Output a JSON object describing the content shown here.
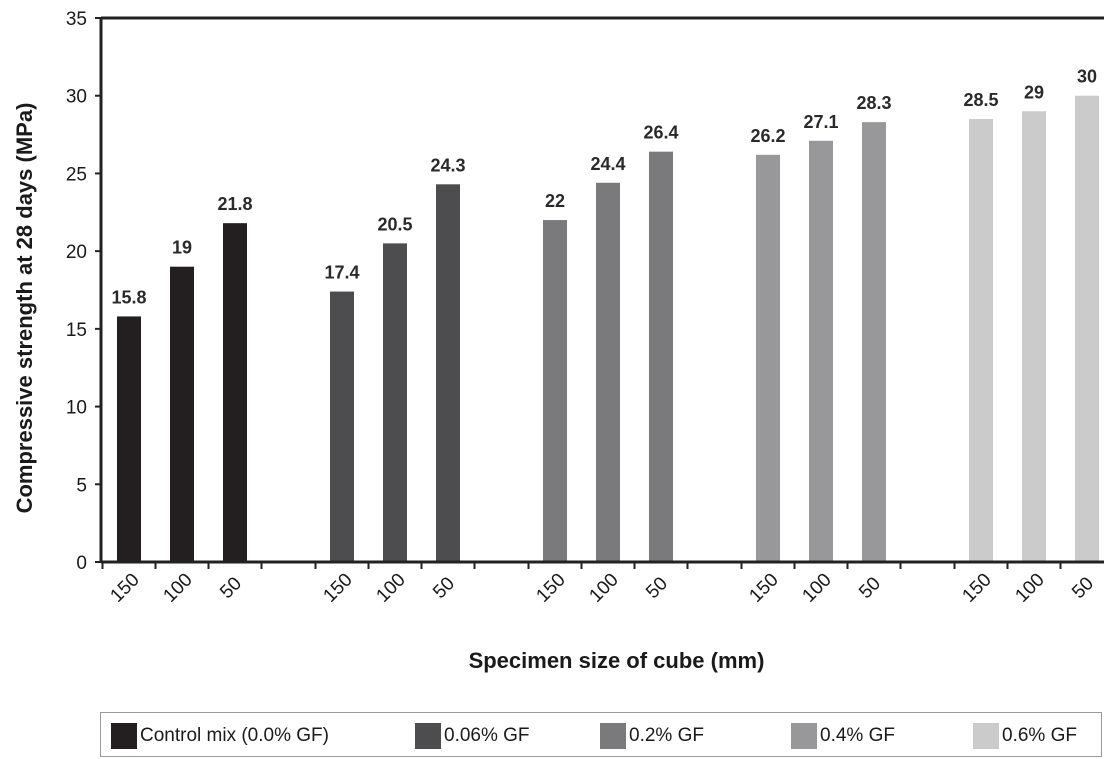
{
  "chart_data": {
    "type": "bar",
    "xlabel": "Specimen size of cube (mm)",
    "ylabel": "Compressive strength at 28 days (MPa)",
    "ylim": [
      0,
      35
    ],
    "yticks": [
      "0",
      "5",
      "10",
      "15",
      "20",
      "25",
      "30",
      "35"
    ],
    "grid": false,
    "legend_position": "bottom",
    "groups": [
      {
        "name": "Control mix (0.0% GF)",
        "color": "#231f20",
        "bars": [
          {
            "size": "150",
            "value": 15.8,
            "label": "15.8"
          },
          {
            "size": "100",
            "value": 19,
            "label": "19"
          },
          {
            "size": "50",
            "value": 21.8,
            "label": "21.8"
          }
        ]
      },
      {
        "name": "0.06% GF",
        "color": "#4d4d4f",
        "bars": [
          {
            "size": "150",
            "value": 17.4,
            "label": "17.4"
          },
          {
            "size": "100",
            "value": 20.5,
            "label": "20.5"
          },
          {
            "size": "50",
            "value": 24.3,
            "label": "24.3"
          }
        ]
      },
      {
        "name": "0.2% GF",
        "color": "#7a7a7c",
        "bars": [
          {
            "size": "150",
            "value": 22,
            "label": "22"
          },
          {
            "size": "100",
            "value": 24.4,
            "label": "24.4"
          },
          {
            "size": "50",
            "value": 26.4,
            "label": "26.4"
          }
        ]
      },
      {
        "name": "0.4% GF",
        "color": "#98989a",
        "bars": [
          {
            "size": "150",
            "value": 26.2,
            "label": "26.2"
          },
          {
            "size": "100",
            "value": 27.1,
            "label": "27.1"
          },
          {
            "size": "50",
            "value": 28.3,
            "label": "28.3"
          }
        ]
      },
      {
        "name": "0.6%  GF",
        "color": "#cbcbcc",
        "bars": [
          {
            "size": "150",
            "value": 28.5,
            "label": "28.5"
          },
          {
            "size": "100",
            "value": 29,
            "label": "29"
          },
          {
            "size": "50",
            "value": 30,
            "label": "30"
          }
        ]
      }
    ]
  }
}
